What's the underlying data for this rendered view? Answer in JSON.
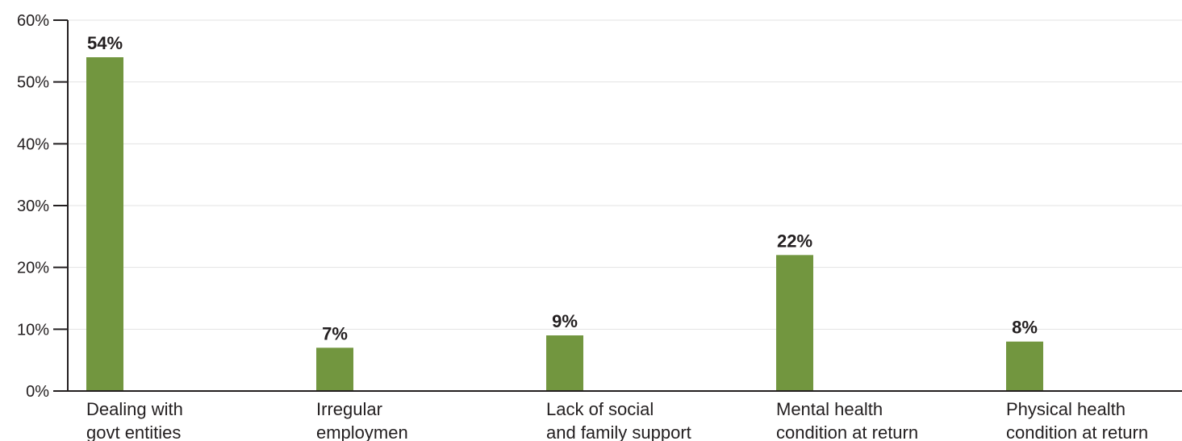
{
  "chart_data": {
    "type": "bar",
    "categories": [
      [
        "Dealing with",
        "govt entities"
      ],
      [
        "Irregular",
        "employmen"
      ],
      [
        "Lack of social",
        "and family support"
      ],
      [
        "Mental health",
        "condition at return"
      ],
      [
        "Physical health",
        "condition at return"
      ]
    ],
    "values": [
      54,
      7,
      9,
      22,
      8
    ],
    "data_labels": [
      "54%",
      "7%",
      "9%",
      "22%",
      "8%"
    ],
    "y_ticks": [
      "0%",
      "10%",
      "20%",
      "30%",
      "40%",
      "50%",
      "60%"
    ],
    "y_tick_values": [
      0,
      10,
      20,
      30,
      40,
      50,
      60
    ],
    "ylim": [
      0,
      60
    ],
    "grid": true,
    "legend": "none",
    "bar_color": "#72963f",
    "grid_color": "#e3e3e3",
    "axis_color": "#231f20"
  }
}
